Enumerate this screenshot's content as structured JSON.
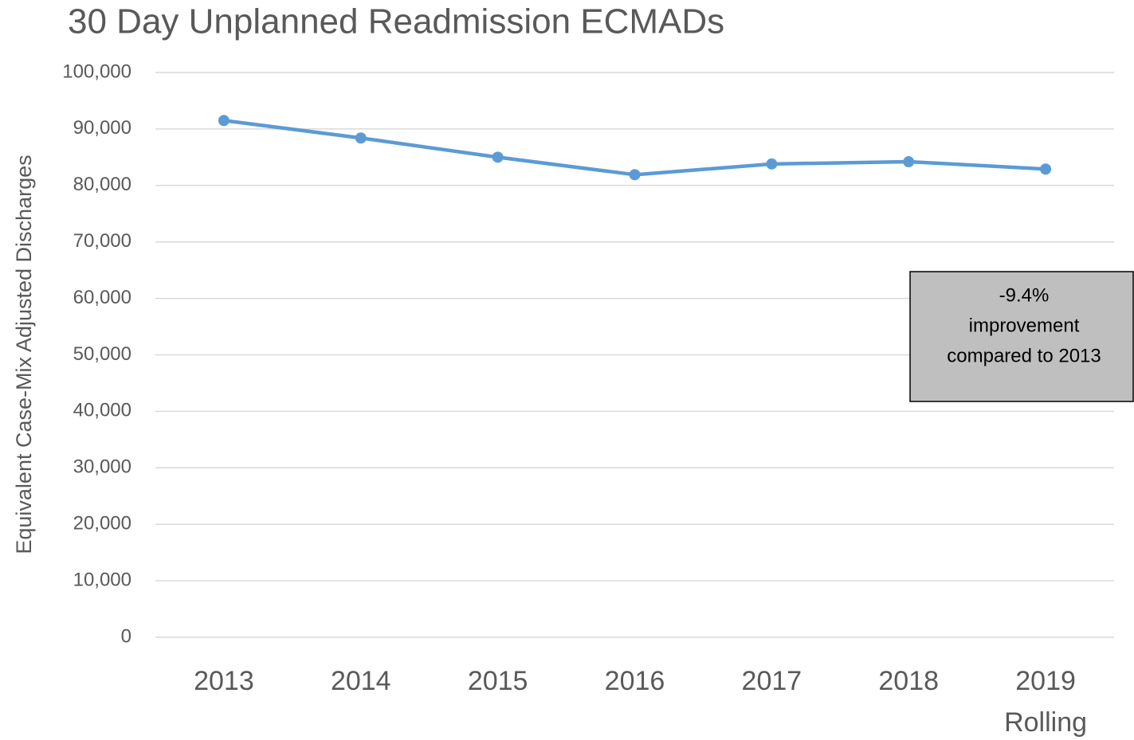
{
  "chart_data": {
    "type": "line",
    "title": "30 Day Unplanned Readmission ECMADs",
    "y_label": "Equivalent Case-Mix Adjusted Discharges",
    "categories": [
      "2013",
      "2014",
      "2015",
      "2016",
      "2017",
      "2018",
      "2019 Rolling"
    ],
    "series": [
      {
        "name": "ECMADs",
        "color": "#5b9bd5",
        "values": [
          91500,
          88400,
          85000,
          81900,
          83800,
          84200,
          82900
        ]
      }
    ],
    "ylim": [
      0,
      100000
    ],
    "yticks": [
      0,
      {
        "value": 10000,
        "label": "10,000"
      },
      {
        "value": 20000,
        "label": "20,000"
      },
      {
        "value": 30000,
        "label": "30,000"
      },
      {
        "value": 40000,
        "label": "40,000"
      },
      {
        "value": 50000,
        "label": "50,000"
      },
      {
        "value": 60000,
        "label": "60,000"
      },
      {
        "value": 70000,
        "label": "70,000"
      },
      {
        "value": 80000,
        "label": "80,000"
      },
      {
        "value": 90000,
        "label": "90,000"
      },
      {
        "value": 100000,
        "label": "100,000"
      }
    ],
    "grid": true,
    "annotation": [
      "-9.4%",
      "improvement",
      "compared to 2013"
    ]
  }
}
